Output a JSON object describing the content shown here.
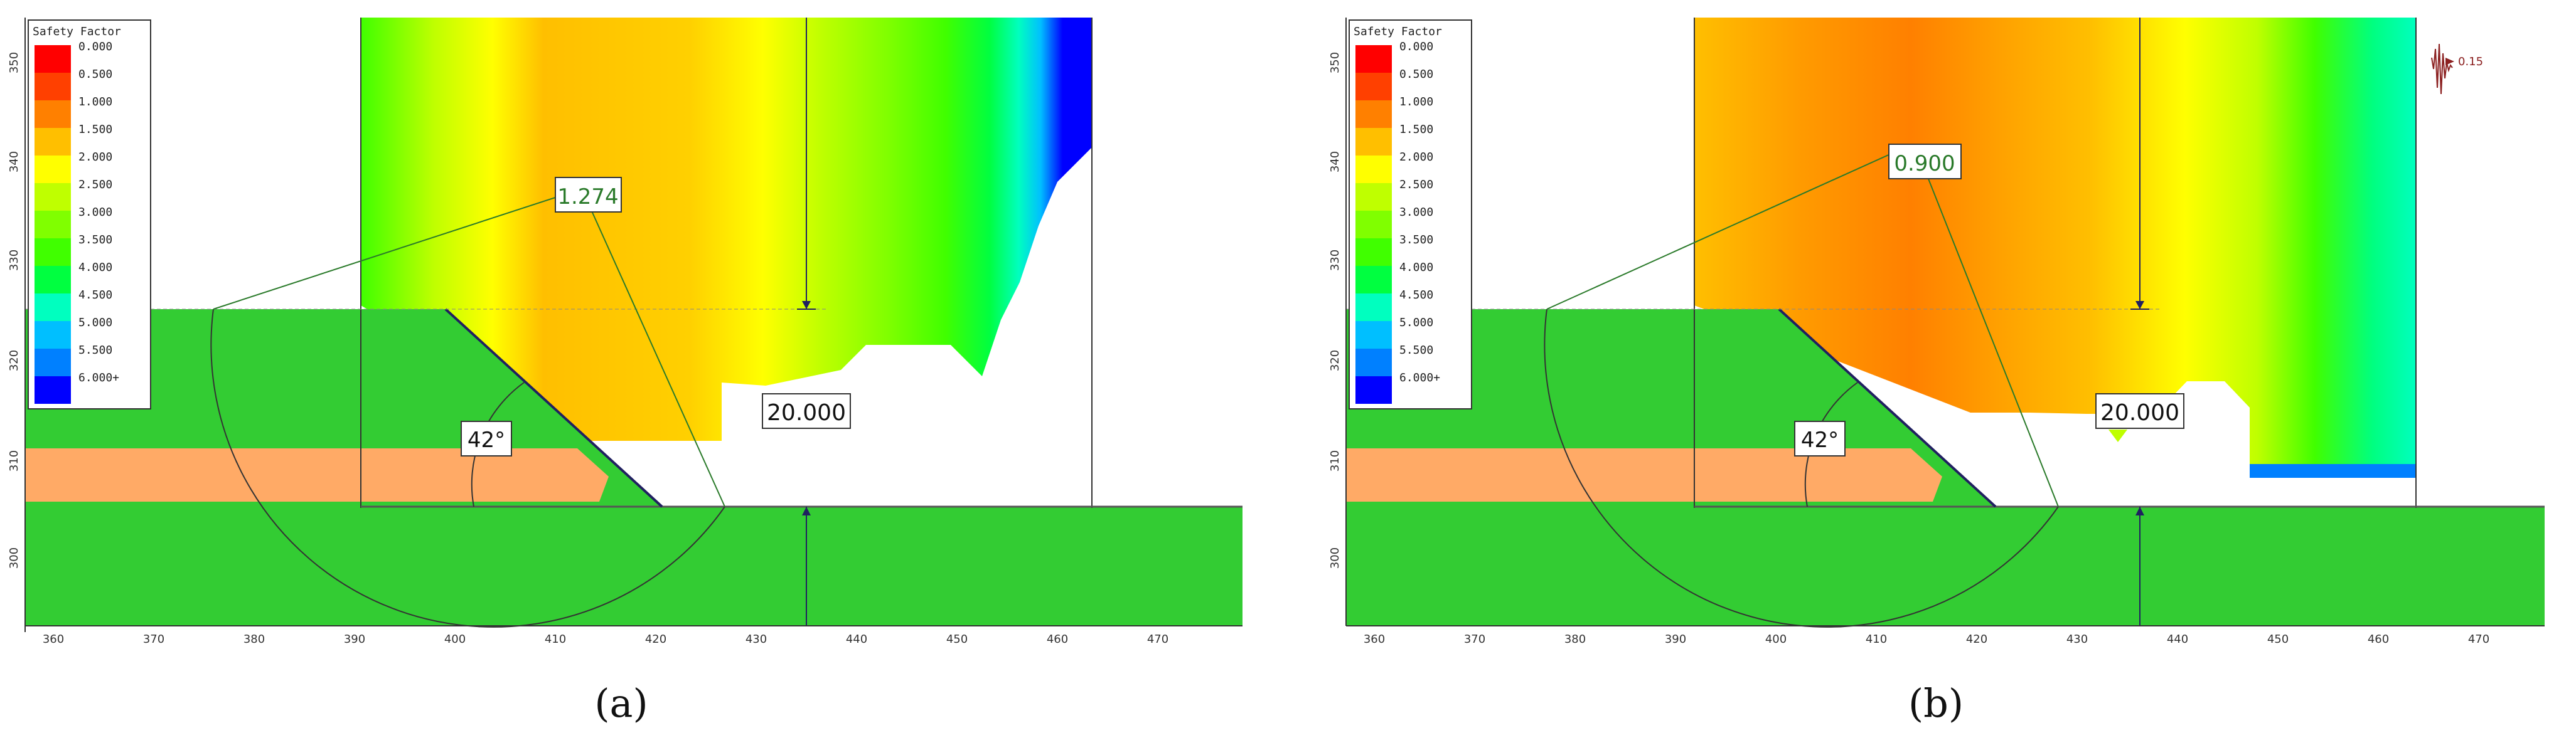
{
  "legend": {
    "title": "Safety Factor",
    "entries": [
      {
        "label": "0.000",
        "color": "#ff0000"
      },
      {
        "label": "0.500",
        "color": "#ff4000"
      },
      {
        "label": "1.000",
        "color": "#ff8000"
      },
      {
        "label": "1.500",
        "color": "#ffbf00"
      },
      {
        "label": "2.000",
        "color": "#ffff00"
      },
      {
        "label": "2.500",
        "color": "#bfff00"
      },
      {
        "label": "3.000",
        "color": "#80ff00"
      },
      {
        "label": "3.500",
        "color": "#40ff00"
      },
      {
        "label": "4.000",
        "color": "#00ff40"
      },
      {
        "label": "4.500",
        "color": "#00ffbf"
      },
      {
        "label": "5.000",
        "color": "#00bfff"
      },
      {
        "label": "5.500",
        "color": "#0080ff"
      },
      {
        "label": "6.000+",
        "color": "#0000ff"
      }
    ]
  },
  "axes": {
    "x_ticks": [
      "360",
      "370",
      "380",
      "390",
      "400",
      "410",
      "420",
      "430",
      "440",
      "450",
      "460",
      "470"
    ],
    "y_ticks": [
      "300",
      "310",
      "320",
      "330",
      "340",
      "350"
    ]
  },
  "materials": {
    "ground_color": "#33cc33",
    "weak_layer_color": "#ffaa66"
  },
  "panels": [
    {
      "id": "a",
      "caption": "(a)",
      "safety_factor": "1.274",
      "load_label": "20.000",
      "angle_label": "42°",
      "seismic_label": ""
    },
    {
      "id": "b",
      "caption": "(b)",
      "safety_factor": "0.900",
      "load_label": "20.000",
      "angle_label": "42°",
      "seismic_label": "0.15"
    }
  ]
}
